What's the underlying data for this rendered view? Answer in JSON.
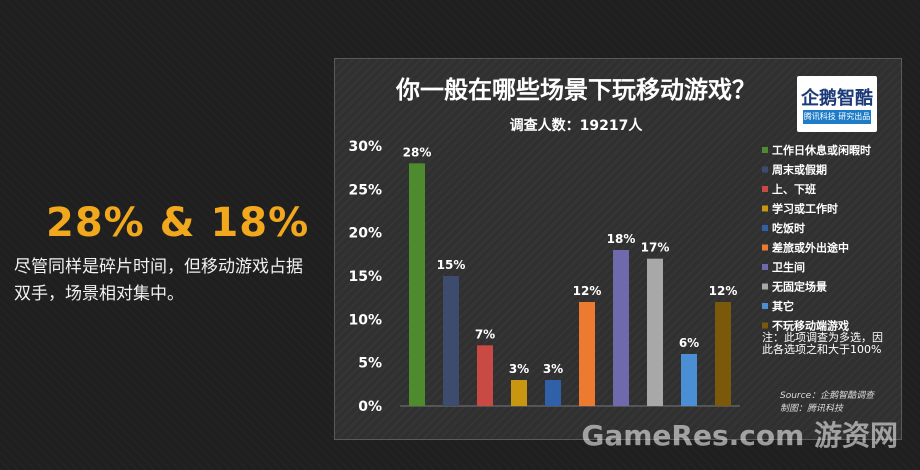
{
  "headline": "28% & 18%",
  "caption": "尽管同样是碎片时间，但移动游戏占据双手，场景相对集中。",
  "chart_data": {
    "type": "bar",
    "title": "你一般在哪些场景下玩移动游戏？",
    "subtitle": "调查人数：19217人",
    "categories": [
      "工作日休息或闲暇时",
      "周末或假期",
      "上、下班",
      "学习或工作时",
      "吃饭时",
      "差旅或外出途中",
      "卫生间",
      "无固定场景",
      "其它",
      "不玩移动端游戏"
    ],
    "values": [
      28,
      15,
      7,
      3,
      3,
      12,
      18,
      17,
      6,
      12
    ],
    "value_labels": [
      "28%",
      "15%",
      "7%",
      "3%",
      "3%",
      "12%",
      "18%",
      "17%",
      "6%",
      "12%"
    ],
    "colors": [
      "#4e8a2e",
      "#3c4b6e",
      "#c94a45",
      "#c99611",
      "#2f60a8",
      "#ec7a30",
      "#6f6aab",
      "#a8a8a8",
      "#4a8fd4",
      "#7a5a0a"
    ],
    "ylim": [
      0,
      30
    ],
    "yticks": [
      "0%",
      "5%",
      "10%",
      "15%",
      "20%",
      "25%",
      "30%"
    ],
    "legend_position": "right",
    "grid": false
  },
  "logo": {
    "text": "企鹅智酷",
    "sub": "腾讯科技 研究出品"
  },
  "note": "注：此项调查为多选，因此各选项之和大于100%",
  "source": [
    "Source：企鹅智酷调查",
    "制图：腾讯科技"
  ],
  "watermark": "GameRes.com 游资网"
}
